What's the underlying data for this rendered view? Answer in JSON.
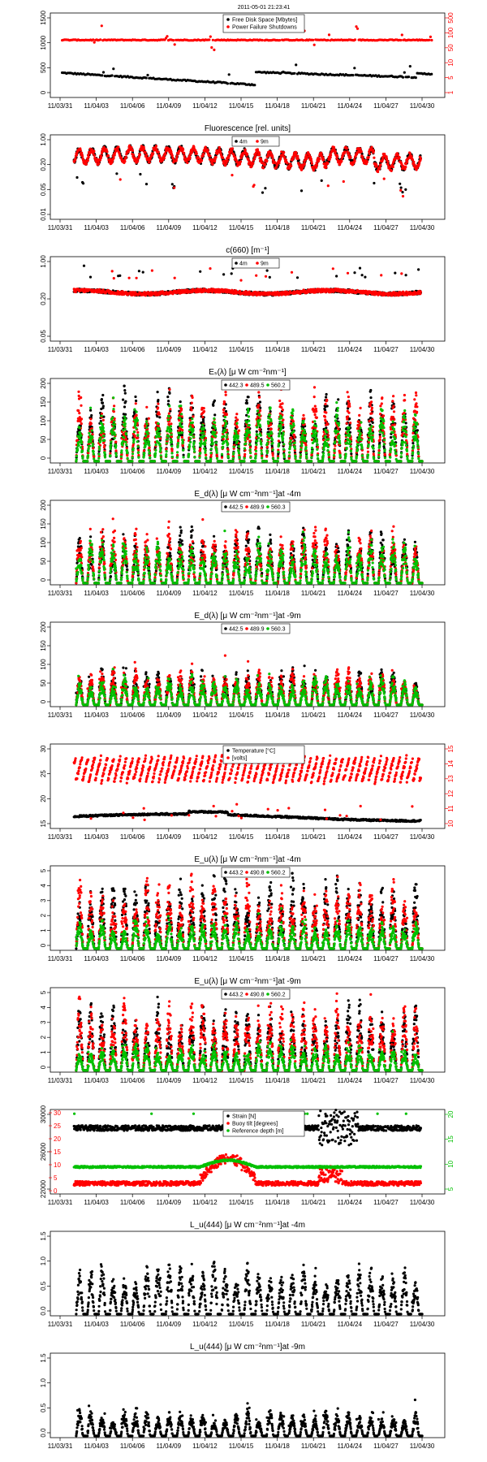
{
  "timestamp": "2011-05-01 21:23:41",
  "x_labels": [
    "11/03/31",
    "11/04/03",
    "11/04/06",
    "11/04/09",
    "11/04/12",
    "11/04/15",
    "11/04/18",
    "11/04/21",
    "11/04/24",
    "11/04/27",
    "11/04/30"
  ],
  "colors": {
    "black": "#000000",
    "red": "#ff0000",
    "green": "#00c000"
  },
  "chart_data": [
    {
      "type": "scatter",
      "title": "",
      "legend": [
        "Free Disk Space [Mbytes]",
        "Power Failure Shutdowns"
      ],
      "y_ticks": [
        "0",
        "500",
        "1000",
        "1500"
      ],
      "y_right_ticks": [
        "1",
        "5",
        "10",
        "50",
        "100",
        "500"
      ],
      "right_axis_color": "#ff0000",
      "series": [
        {
          "name": "Free Disk Space [Mbytes]",
          "color": "#000000",
          "pattern": "disk"
        },
        {
          "name": "Power Failure Shutdowns",
          "color": "#ff0000",
          "pattern": "power"
        }
      ]
    },
    {
      "type": "scatter",
      "title": "Fluorescence  [rel. units]",
      "legend": [
        "4m",
        "9m"
      ],
      "y_ticks": [
        "0.01",
        "0.05",
        "0.20",
        "1.00"
      ],
      "series": [
        {
          "name": "4m",
          "color": "#000000",
          "pattern": "fluor"
        },
        {
          "name": "9m",
          "color": "#ff0000",
          "pattern": "fluor"
        }
      ]
    },
    {
      "type": "scatter",
      "title": "c(660)  [m⁻¹]",
      "legend": [
        "4m",
        "9m"
      ],
      "y_ticks": [
        "0.05",
        "0.20",
        "1.00"
      ],
      "series": [
        {
          "name": "4m",
          "color": "#000000",
          "pattern": "flat"
        },
        {
          "name": "9m",
          "color": "#ff0000",
          "pattern": "flat"
        }
      ]
    },
    {
      "type": "scatter",
      "title": "Eₛ(λ)  [μ W cm⁻²nm⁻¹]",
      "legend": [
        "442.3",
        "489.5",
        "560.2"
      ],
      "y_ticks": [
        "0",
        "50",
        "100",
        "150",
        "200"
      ],
      "series": [
        {
          "name": "442.3",
          "color": "#000000",
          "pattern": "diurnal-high"
        },
        {
          "name": "489.5",
          "color": "#ff0000",
          "pattern": "diurnal-high"
        },
        {
          "name": "560.2",
          "color": "#00c000",
          "pattern": "diurnal-high"
        }
      ]
    },
    {
      "type": "scatter",
      "title": "E_d(λ)  [μ W cm⁻²nm⁻¹]at -4m",
      "legend": [
        "442.5",
        "489.9",
        "560.3"
      ],
      "y_ticks": [
        "0",
        "50",
        "100",
        "150",
        "200"
      ],
      "series": [
        {
          "name": "442.5",
          "color": "#000000",
          "pattern": "diurnal-mid"
        },
        {
          "name": "489.9",
          "color": "#ff0000",
          "pattern": "diurnal-mid"
        },
        {
          "name": "560.3",
          "color": "#00c000",
          "pattern": "diurnal-mid"
        }
      ]
    },
    {
      "type": "scatter",
      "title": "E_d(λ)  [μ W cm⁻²nm⁻¹]at -9m",
      "legend": [
        "442.5",
        "489.9",
        "560.3"
      ],
      "y_ticks": [
        "0",
        "50",
        "100",
        "150",
        "200"
      ],
      "series": [
        {
          "name": "442.5",
          "color": "#000000",
          "pattern": "diurnal-low"
        },
        {
          "name": "489.9",
          "color": "#ff0000",
          "pattern": "diurnal-low"
        },
        {
          "name": "560.3",
          "color": "#00c000",
          "pattern": "diurnal-low"
        }
      ]
    },
    {
      "type": "scatter",
      "title": "",
      "legend": [
        "Temperature [°C]",
        "[volts]"
      ],
      "y_ticks": [
        "15",
        "20",
        "25",
        "30"
      ],
      "y_right_ticks": [
        "10",
        "11",
        "12",
        "13",
        "14",
        "15"
      ],
      "right_axis_color": "#ff0000",
      "series": [
        {
          "name": "Temperature [°C]",
          "color": "#000000",
          "pattern": "temp"
        },
        {
          "name": "[volts]",
          "color": "#ff0000",
          "pattern": "volts"
        }
      ]
    },
    {
      "type": "scatter",
      "title": "E_u(λ)  [μ W cm⁻²nm⁻¹]at -4m",
      "legend": [
        "443.2",
        "490.8",
        "560.2"
      ],
      "y_ticks": [
        "0",
        "1",
        "2",
        "3",
        "4",
        "5"
      ],
      "series": [
        {
          "name": "443.2",
          "color": "#000000",
          "pattern": "eu"
        },
        {
          "name": "490.8",
          "color": "#ff0000",
          "pattern": "eu"
        },
        {
          "name": "560.2",
          "color": "#00c000",
          "pattern": "eu-low"
        }
      ]
    },
    {
      "type": "scatter",
      "title": "E_u(λ)  [μ W cm⁻²nm⁻¹]at -9m",
      "legend": [
        "443.2",
        "490.8",
        "560.2"
      ],
      "y_ticks": [
        "0",
        "1",
        "2",
        "3",
        "4",
        "5"
      ],
      "series": [
        {
          "name": "443.2",
          "color": "#000000",
          "pattern": "eu"
        },
        {
          "name": "490.8",
          "color": "#ff0000",
          "pattern": "eu"
        },
        {
          "name": "560.2",
          "color": "#00c000",
          "pattern": "eu-low"
        }
      ]
    },
    {
      "type": "scatter",
      "title": "",
      "legend": [
        "Strain [N]",
        "Buoy tilt [degrees]",
        "Reference depth [m]"
      ],
      "y_ticks": [
        "22000",
        "26000",
        "30000"
      ],
      "y_left_extra_ticks": [
        "0",
        "5",
        "10",
        "15",
        "20",
        "25",
        "30"
      ],
      "y_right_ticks": [
        "5",
        "10",
        "15",
        "20"
      ],
      "right_axis_color": "#00c000",
      "series": [
        {
          "name": "Strain [N]",
          "color": "#000000",
          "pattern": "strain"
        },
        {
          "name": "Buoy tilt [degrees]",
          "color": "#ff0000",
          "pattern": "tilt"
        },
        {
          "name": "Reference depth [m]",
          "color": "#00c000",
          "pattern": "depth"
        }
      ]
    },
    {
      "type": "scatter",
      "title": "L_u(444)  [μ W cm⁻²nm⁻¹]at -4m",
      "legend": [],
      "y_ticks": [
        "0.0",
        "0.5",
        "1.0",
        "1.5"
      ],
      "series": [
        {
          "name": "",
          "color": "#000000",
          "pattern": "lu4"
        }
      ]
    },
    {
      "type": "scatter",
      "title": "L_u(444)  [μ W cm⁻²nm⁻¹]at -9m",
      "legend": [],
      "y_ticks": [
        "0.0",
        "0.5",
        "1.0",
        "1.5"
      ],
      "series": [
        {
          "name": "",
          "color": "#000000",
          "pattern": "lu9"
        }
      ]
    }
  ]
}
